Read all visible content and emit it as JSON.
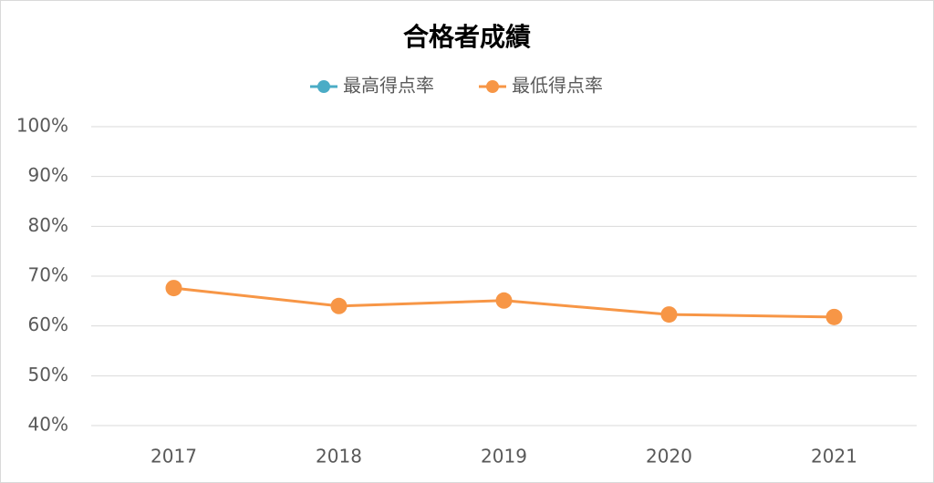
{
  "chart_data": {
    "type": "line",
    "title": "合格者成績",
    "categories": [
      "2017",
      "2018",
      "2019",
      "2020",
      "2021"
    ],
    "series": [
      {
        "name": "最高得点率",
        "color": "#4bacc6",
        "values": [
          null,
          null,
          null,
          null,
          null
        ]
      },
      {
        "name": "最低得点率",
        "color": "#f79646",
        "values": [
          67.6,
          64.0,
          65.1,
          62.3,
          61.8
        ]
      }
    ],
    "ylim": [
      40,
      100
    ],
    "yticks": [
      {
        "value": 40,
        "label": "40%"
      },
      {
        "value": 50,
        "label": "50%"
      },
      {
        "value": 60,
        "label": "60%"
      },
      {
        "value": 70,
        "label": "70%"
      },
      {
        "value": 80,
        "label": "80%"
      },
      {
        "value": 90,
        "label": "90%"
      },
      {
        "value": 100,
        "label": "100%"
      }
    ],
    "grid": true,
    "legend": "top"
  }
}
